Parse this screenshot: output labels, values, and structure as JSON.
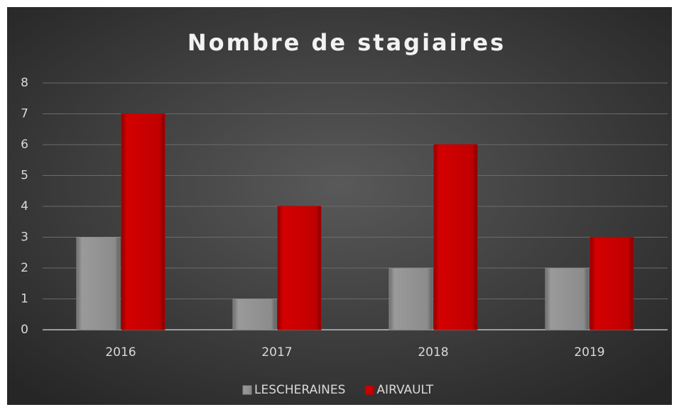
{
  "chart_data": {
    "type": "bar",
    "title": "Nombre de stagiaires",
    "categories": [
      "2016",
      "2017",
      "2018",
      "2019"
    ],
    "series": [
      {
        "name": "LESCHERAINES",
        "color": "#8c8c8c",
        "values": [
          3,
          1,
          2,
          2
        ]
      },
      {
        "name": "AIRVAULT",
        "color": "#c00000",
        "values": [
          7,
          4,
          6,
          3
        ]
      }
    ],
    "ylim": [
      0,
      8
    ],
    "yticks": [
      0,
      1,
      2,
      3,
      4,
      5,
      6,
      7,
      8
    ],
    "grid": true,
    "legend": "bottom"
  }
}
